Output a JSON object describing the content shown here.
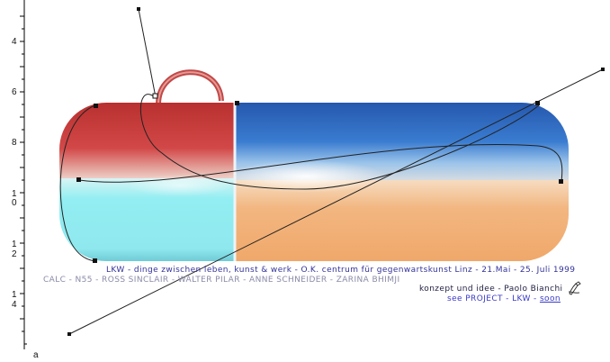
{
  "ruler": {
    "labels": [
      "4",
      "6",
      "8",
      "1",
      "0",
      "1",
      "2",
      "1",
      "4",
      "a"
    ]
  },
  "captions": {
    "line1": "LKW - dinge zwischen leben, kunst & werk - O.K. centrum für gegenwartskunst Linz - 21.Mai - 25. Juli 1999",
    "line2": "CALC - N55 - ROSS SINCLAIR - WALTER PILAR - ANNE SCHNEIDER - ZARINA BHIMJI",
    "line3": "konzept und idee - Paolo Bianchi",
    "see_project": "see PROJECT - LKW",
    "separator": " - ",
    "soon": "soon"
  },
  "icons": {
    "hand": "hand-pen-icon"
  },
  "colors": {
    "red": "#c03a3a",
    "cyan": "#8fe9ef",
    "blue": "#2a63b8",
    "orange": "#f2b27a",
    "path": "#222222"
  }
}
